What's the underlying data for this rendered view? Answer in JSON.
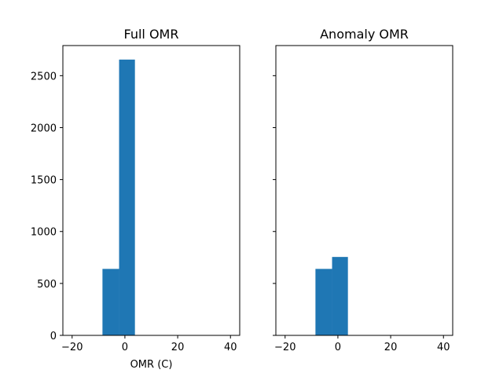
{
  "chart_data": [
    {
      "type": "bar",
      "title": "Full OMR",
      "xlabel": "OMR (C)",
      "ylabel": "",
      "xlim": [
        -23.5,
        43.5
      ],
      "ylim": [
        0,
        2790
      ],
      "xticks": [
        -20,
        0,
        20,
        40
      ],
      "yticks": [
        0,
        500,
        1000,
        1500,
        2000,
        2500
      ],
      "show_ytick_labels": true,
      "bins": [
        {
          "x0": -8.5,
          "x1": -2.2,
          "value": 640
        },
        {
          "x0": -2.2,
          "x1": 3.8,
          "value": 2655
        }
      ],
      "color": "#1f77b4",
      "grid": false
    },
    {
      "type": "bar",
      "title": "Anomaly OMR",
      "xlabel": "",
      "ylabel": "",
      "xlim": [
        -23.5,
        43.5
      ],
      "ylim": [
        0,
        2790
      ],
      "xticks": [
        -20,
        0,
        20,
        40
      ],
      "yticks": [
        0,
        500,
        1000,
        1500,
        2000,
        2500
      ],
      "show_ytick_labels": false,
      "bins": [
        {
          "x0": -8.5,
          "x1": -2.2,
          "value": 640
        },
        {
          "x0": -2.2,
          "x1": 3.8,
          "value": 755
        }
      ],
      "color": "#1f77b4",
      "grid": false
    }
  ]
}
